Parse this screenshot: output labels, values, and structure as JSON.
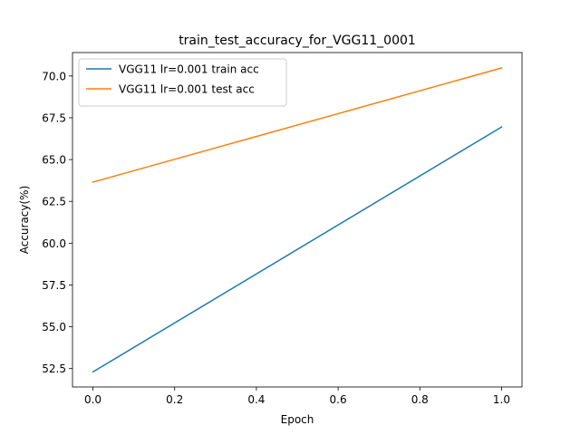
{
  "chart_data": {
    "type": "line",
    "title": "train_test_accuracy_for_VGG11_0001",
    "xlabel": "Epoch",
    "ylabel": "Accuracy(%)",
    "xlim": [
      -0.05,
      1.05
    ],
    "ylim": [
      51.4,
      71.4
    ],
    "xticks": [
      0.0,
      0.2,
      0.4,
      0.6,
      0.8,
      1.0
    ],
    "xtick_labels": [
      "0.0",
      "0.2",
      "0.4",
      "0.6",
      "0.8",
      "1.0"
    ],
    "yticks": [
      52.5,
      55.0,
      57.5,
      60.0,
      62.5,
      65.0,
      67.5,
      70.0
    ],
    "ytick_labels": [
      "52.5",
      "55.0",
      "57.5",
      "60.0",
      "62.5",
      "65.0",
      "67.5",
      "70.0"
    ],
    "grid": false,
    "legend_position": "top-left",
    "series": [
      {
        "name": "VGG11 lr=0.001 train acc",
        "color": "#1f77b4",
        "x": [
          0,
          1
        ],
        "y": [
          52.3,
          66.95
        ]
      },
      {
        "name": "VGG11 lr=0.001 test acc",
        "color": "#ff7f0e",
        "x": [
          0,
          1
        ],
        "y": [
          63.65,
          70.48
        ]
      }
    ]
  }
}
